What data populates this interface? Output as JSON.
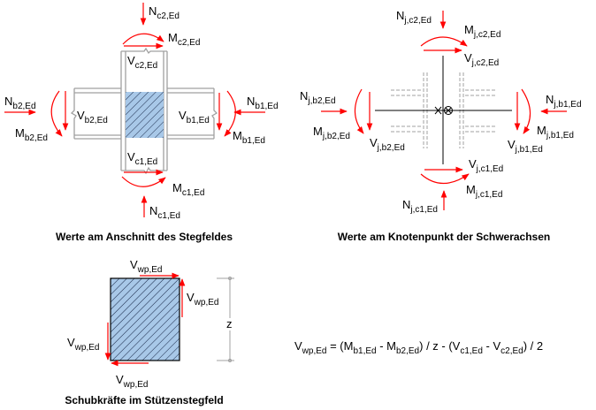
{
  "colors": {
    "force": "#ff0000",
    "panel_fill": "#a8c8e8",
    "member": "#a0a0a0",
    "axis": "#000000"
  },
  "left_diagram": {
    "title": "Werte am Anschnitt des Stegfeldes",
    "labels": {
      "Nc2": {
        "base": "N",
        "sub": "c2,Ed"
      },
      "Mc2": {
        "base": "M",
        "sub": "c2,Ed"
      },
      "Vc2": {
        "base": "V",
        "sub": "c2,Ed"
      },
      "Nb2": {
        "base": "N",
        "sub": "b2,Ed"
      },
      "Mb2": {
        "base": "M",
        "sub": "b2,Ed"
      },
      "Vb2": {
        "base": "V",
        "sub": "b2,Ed"
      },
      "Nb1": {
        "base": "N",
        "sub": "b1,Ed"
      },
      "Mb1": {
        "base": "M",
        "sub": "b1,Ed"
      },
      "Vb1": {
        "base": "V",
        "sub": "b1,Ed"
      },
      "Vc1": {
        "base": "V",
        "sub": "c1,Ed"
      },
      "Mc1": {
        "base": "M",
        "sub": "c1,Ed"
      },
      "Nc1": {
        "base": "N",
        "sub": "c1,Ed"
      }
    }
  },
  "right_diagram": {
    "title": "Werte am Knotenpunkt der Schwerachsen",
    "labels": {
      "Nc2": {
        "base": "N",
        "sub": "j,c2,Ed"
      },
      "Mc2": {
        "base": "M",
        "sub": "j,c2,Ed"
      },
      "Vc2": {
        "base": "V",
        "sub": "j,c2,Ed"
      },
      "Nb2": {
        "base": "N",
        "sub": "j,b2,Ed"
      },
      "Mb2": {
        "base": "M",
        "sub": "j,b2,Ed"
      },
      "Vb2": {
        "base": "V",
        "sub": "j,b2,Ed"
      },
      "Nb1": {
        "base": "N",
        "sub": "j,b1,Ed"
      },
      "Mb1": {
        "base": "M",
        "sub": "j,b1,Ed"
      },
      "Vb1": {
        "base": "V",
        "sub": "j,b1,Ed"
      },
      "Vc1": {
        "base": "V",
        "sub": "j,c1,Ed"
      },
      "Mc1": {
        "base": "M",
        "sub": "j,c1,Ed"
      },
      "Nc1": {
        "base": "N",
        "sub": "j,c1,Ed"
      }
    }
  },
  "shear_diagram": {
    "title": "Schubkräfte im Stützenstegfeld",
    "vwp": {
      "base": "V",
      "sub": "wp,Ed"
    },
    "dimension": "z"
  },
  "formula": [
    {
      "base": "V",
      "sub": "wp,Ed"
    },
    {
      "base": " = (M",
      "sub": "b1,Ed"
    },
    {
      "base": " - M",
      "sub": "b2,Ed"
    },
    {
      "base": ") / z - (V",
      "sub": "c1,Ed"
    },
    {
      "base": " - V",
      "sub": "c2,Ed"
    },
    {
      "base": ") / 2",
      "sub": ""
    }
  ]
}
